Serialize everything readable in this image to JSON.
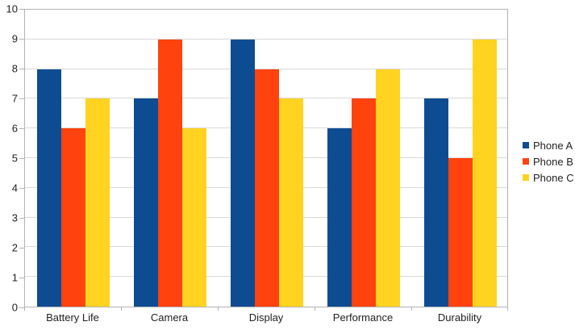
{
  "chart_data": {
    "type": "bar",
    "title": "",
    "categories": [
      "Battery Life",
      "Camera",
      "Display",
      "Performance",
      "Durability"
    ],
    "series": [
      {
        "name": "Phone A",
        "color": "#0e4c92",
        "values": [
          8,
          7,
          9,
          6,
          7
        ]
      },
      {
        "name": "Phone B",
        "color": "#ff420e",
        "values": [
          6,
          9,
          8,
          7,
          5
        ]
      },
      {
        "name": "Phone C",
        "color": "#ffd320",
        "values": [
          7,
          6,
          7,
          8,
          9
        ]
      }
    ],
    "ylim": [
      0,
      10
    ],
    "ytick_interval": 1,
    "y_tick_labels": [
      "0",
      "1",
      "2",
      "3",
      "4",
      "5",
      "6",
      "7",
      "8",
      "9",
      "10"
    ],
    "grid": "horizontal",
    "legend_position": "right",
    "colors": {
      "background": "#ffffff",
      "gridline": "#d9d9d9",
      "axis": "#b3b3b3",
      "text": "#222222"
    }
  }
}
